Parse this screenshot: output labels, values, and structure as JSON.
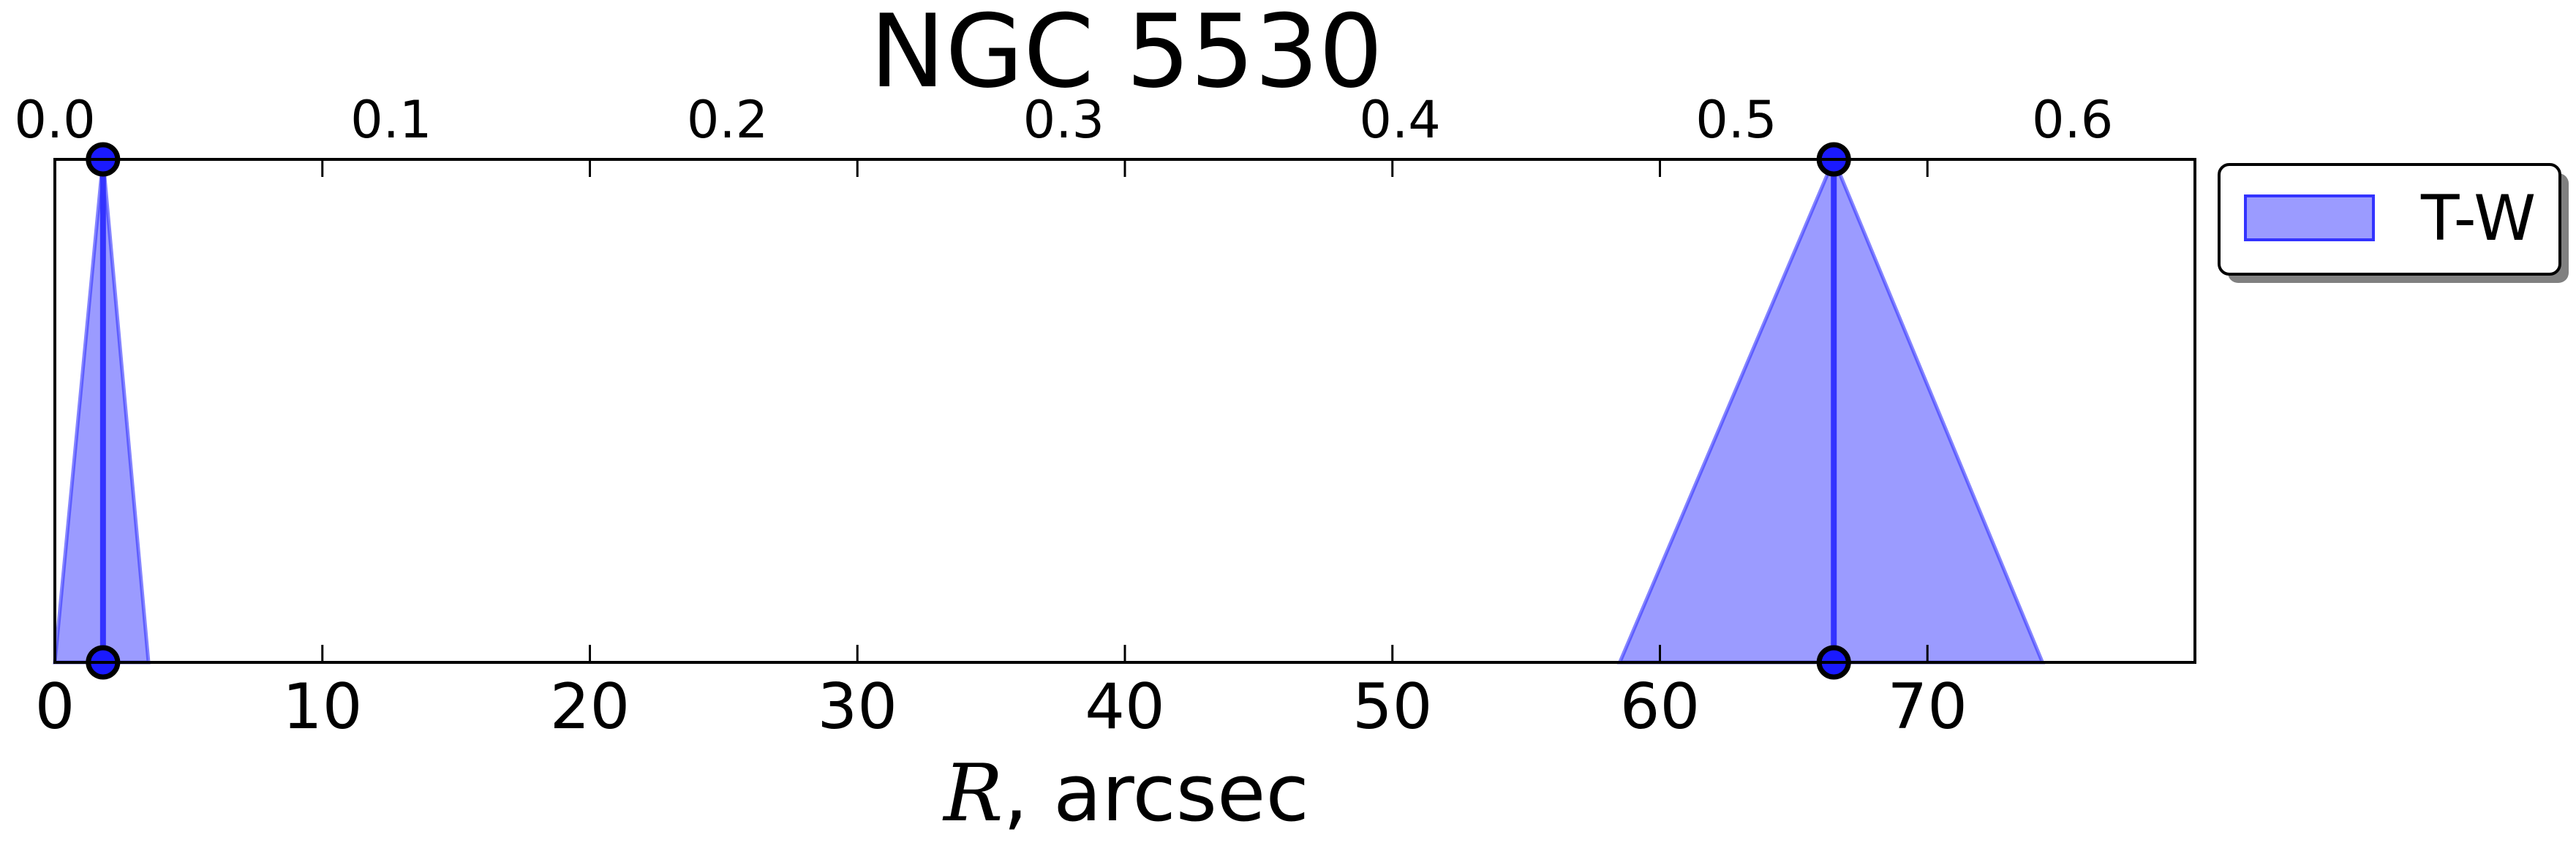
{
  "chart_data": {
    "type": "area",
    "title": "NGC 5530",
    "xlabel_symbol": "R",
    "xlabel_rest": ", arcsec",
    "xlim": [
      0,
      80
    ],
    "x_ticks": [
      0,
      10,
      20,
      30,
      40,
      50,
      60,
      70
    ],
    "x_tick_labels": [
      "0",
      "10",
      "20",
      "30",
      "40",
      "50",
      "60",
      "70"
    ],
    "top_axis": {
      "xlim": [
        0,
        0.6364
      ],
      "ticks": [
        0.0,
        0.1,
        0.2,
        0.3,
        0.4,
        0.5,
        0.6
      ],
      "tick_labels": [
        "0.0",
        "0.1",
        "0.2",
        "0.3",
        "0.4",
        "0.5",
        "0.6"
      ]
    },
    "ylim": [
      0,
      1
    ],
    "grid": false,
    "legend": {
      "placement": "outside-top-right",
      "entries": [
        "T-W"
      ]
    },
    "series": [
      {
        "name": "T-W",
        "color": "#6666ff",
        "edge_color": "#3333ff",
        "regions": [
          {
            "center": 1.8,
            "low": 0.0,
            "high": 3.5
          },
          {
            "center": 66.5,
            "low": 58.5,
            "high": 74.3
          }
        ]
      }
    ]
  }
}
